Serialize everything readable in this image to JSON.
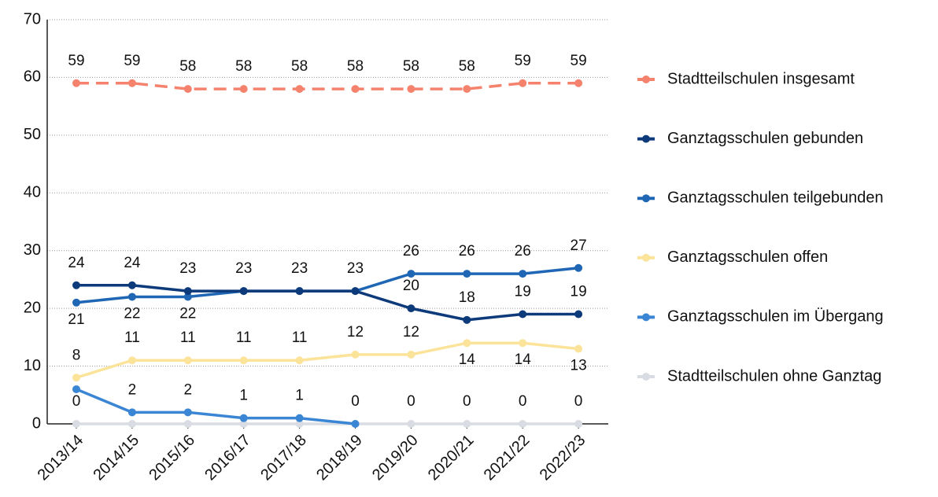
{
  "chart_data": {
    "type": "line",
    "categories": [
      "2013/14",
      "2014/15",
      "2015/16",
      "2016/17",
      "2017/18",
      "2018/19",
      "2019/20",
      "2020/21",
      "2021/22",
      "2022/23"
    ],
    "series": [
      {
        "name": "Stadtteilschulen insgesamt",
        "color": "#f4826c",
        "dashed": true,
        "values": [
          59,
          59,
          58,
          58,
          58,
          58,
          58,
          58,
          59,
          59
        ]
      },
      {
        "name": "Ganztagsschulen gebunden",
        "color": "#0d3a7a",
        "values": [
          24,
          24,
          23,
          23,
          23,
          23,
          20,
          18,
          19,
          19
        ]
      },
      {
        "name": "Ganztagsschulen teilgebunden",
        "color": "#1f67b5",
        "values": [
          21,
          22,
          22,
          23,
          23,
          23,
          26,
          26,
          26,
          27
        ]
      },
      {
        "name": "Ganztagsschulen offen",
        "color": "#fbe49a",
        "values": [
          8,
          11,
          11,
          11,
          11,
          12,
          12,
          14,
          14,
          13
        ]
      },
      {
        "name": "Ganztagsschulen im Übergang",
        "color": "#3a86d4",
        "values": [
          6,
          2,
          2,
          1,
          1,
          0,
          null,
          null,
          null,
          null
        ]
      },
      {
        "name": "Stadtteilschulen ohne Ganztag",
        "color": "#d9dde3",
        "values": [
          0,
          0,
          0,
          0,
          0,
          0,
          0,
          0,
          0,
          0
        ]
      }
    ],
    "ylim": [
      0,
      70
    ],
    "yticks": [
      0,
      10,
      20,
      30,
      40,
      50,
      60,
      70
    ],
    "grid": true,
    "legend": "right"
  }
}
